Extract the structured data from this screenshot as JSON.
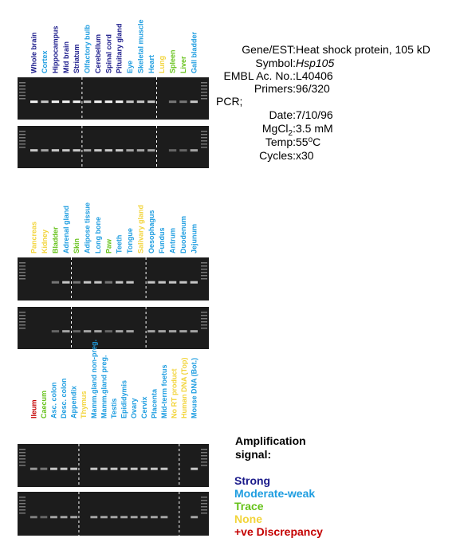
{
  "info": [
    {
      "label": "Gene/EST:",
      "value": "Heat shock protein, 105 kD"
    },
    {
      "label": "Symbol:",
      "value": "Hsp105",
      "italic": true
    },
    {
      "label": "EMBL Ac. No.:",
      "value": "L40406"
    },
    {
      "label": "Primers:",
      "value": "96/320"
    },
    {
      "label": "PCR;"
    },
    {
      "label": "Date:",
      "value": "7/10/96"
    },
    {
      "label": "MgCl",
      "label_sub": "2",
      "label_after": ":",
      "value": "3.5 mM"
    },
    {
      "label": "Temp:",
      "value": "55",
      "value_sup": "o",
      "value_after": "C"
    },
    {
      "label": "Cycles:",
      "value": "x30"
    }
  ],
  "legend": {
    "title": [
      "Amplification",
      "signal:"
    ],
    "items": [
      {
        "label": "Strong",
        "color": "#1a1a8a"
      },
      {
        "label": "Moderate-weak",
        "color": "#1e9de0"
      },
      {
        "label": "Trace",
        "color": "#66c21a"
      },
      {
        "label": "None",
        "color": "#f2d43a"
      },
      {
        "label": "+ve Discrepancy",
        "color": "#c40000"
      }
    ]
  },
  "panels": [
    {
      "lanes": [
        {
          "label": "Whole brain",
          "signal": 0
        },
        {
          "label": "Cortex",
          "signal": 1
        },
        {
          "label": "Hippocampus",
          "signal": 0
        },
        {
          "label": "Mid brain",
          "signal": 0
        },
        {
          "label": "Striatum",
          "signal": 0
        },
        {
          "label": "Olfactory bulb",
          "signal": 1
        },
        {
          "label": "Cerebellum",
          "signal": 0
        },
        {
          "label": "Spinal cord",
          "signal": 0
        },
        {
          "label": "Pituitary gland",
          "signal": 0
        },
        {
          "label": "Eye",
          "signal": 1
        },
        {
          "label": "Skeletal muscle",
          "signal": 1
        },
        {
          "label": "Heart",
          "signal": 1
        },
        {
          "label": "Lung",
          "signal": 3
        },
        {
          "label": "Spleen",
          "signal": 2
        },
        {
          "label": "Liver",
          "signal": 2
        },
        {
          "label": "Gall bladder",
          "signal": 1
        }
      ]
    },
    {
      "lanes": [
        {
          "label": "Pancreas",
          "signal": 3
        },
        {
          "label": "Kidney",
          "signal": 3
        },
        {
          "label": "Bladder",
          "signal": 2
        },
        {
          "label": "Adrenal gland",
          "signal": 1
        },
        {
          "label": "Skin",
          "signal": 2
        },
        {
          "label": "Adipose tissue",
          "signal": 1
        },
        {
          "label": "Long bone",
          "signal": 1
        },
        {
          "label": "Paw",
          "signal": 2
        },
        {
          "label": "Teeth",
          "signal": 1
        },
        {
          "label": "Tongue",
          "signal": 1
        },
        {
          "label": "Salivary gland",
          "signal": 3
        },
        {
          "label": "Oesophagus",
          "signal": 1
        },
        {
          "label": "Fundus",
          "signal": 1
        },
        {
          "label": "Antrum",
          "signal": 1
        },
        {
          "label": "Duodenum",
          "signal": 1
        },
        {
          "label": "Jejunum",
          "signal": 1
        }
      ]
    },
    {
      "lanes": [
        {
          "label": "Ileum",
          "signal": 4
        },
        {
          "label": "Caecum",
          "signal": 2
        },
        {
          "label": "Asc. colon",
          "signal": 1
        },
        {
          "label": "Desc. colon",
          "signal": 1
        },
        {
          "label": "Appendix",
          "signal": 1
        },
        {
          "label": "Thymus",
          "signal": 3
        },
        {
          "label": "Mamm.gland non-preg.",
          "signal": 1
        },
        {
          "label": "Mamm.gland preg.",
          "signal": 1
        },
        {
          "label": "Testis",
          "signal": 1
        },
        {
          "label": "Epididymis",
          "signal": 1
        },
        {
          "label": "Ovary",
          "signal": 1
        },
        {
          "label": "Cervix",
          "signal": 1
        },
        {
          "label": "Placenta",
          "signal": 1
        },
        {
          "label": "Mid-term foetus",
          "signal": 1
        },
        {
          "label": "No RT product",
          "signal": 3
        },
        {
          "label": "Human DNA (Top)",
          "signal": 3
        },
        {
          "label": "Mouse DNA (Bot.)",
          "signal": 1
        }
      ]
    }
  ]
}
